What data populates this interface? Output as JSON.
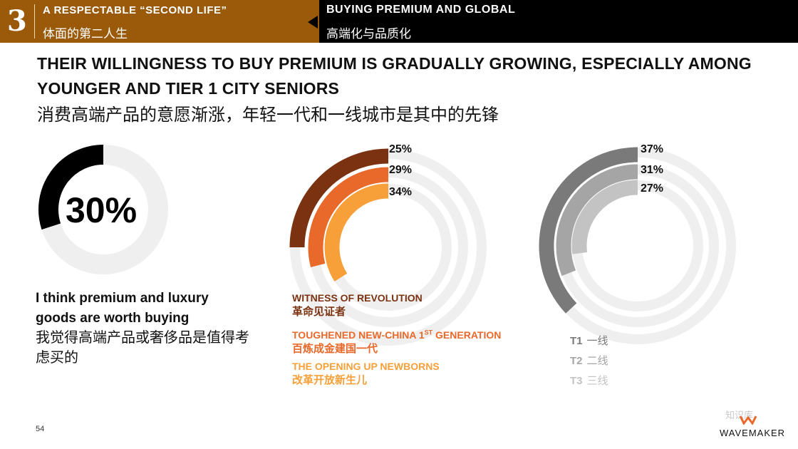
{
  "section": {
    "number": "3",
    "title_en": "A RESPECTABLE “SECOND LIFE”",
    "title_cn": "体面的第二人生",
    "subtitle_en": "BUYING PREMIUM AND GLOBAL",
    "subtitle_cn": "高端化与品质化"
  },
  "headline": {
    "en": "THEIR WILLINGNESS TO BUY PREMIUM IS GRADUALLY GROWING, ESPECIALLY AMONG YOUNGER AND TIER 1 CITY SENIORS",
    "cn": "消费高端产品的意愿渐涨，年轻一代和一线城市是其中的先锋"
  },
  "main_stat": {
    "value_text": "30%",
    "desc_en": "I think premium and luxury goods are worth buying",
    "desc_cn": "我觉得高端产品或奢侈品是值得考虑买的"
  },
  "colors": {
    "section_brown": "#9a5a0a",
    "gen1": "#7b3210",
    "gen2": "#e8692a",
    "gen3": "#f7a03a",
    "tier1": "#7a7a7a",
    "tier2": "#a5a5a5",
    "tier3": "#c3c3c3",
    "track": "#efefef",
    "black": "#000000"
  },
  "chart_data": [
    {
      "type": "pie",
      "subtype": "donut",
      "values": [
        30
      ],
      "labels": [
        "30%"
      ],
      "max": 100
    },
    {
      "type": "pie",
      "subtype": "radial-bar",
      "series": [
        {
          "name": "WITNESS OF REVOLUTION",
          "name_cn": "革命见证者",
          "value": 25,
          "label": "25%"
        },
        {
          "name": "TOUGHENED NEW-CHINA 1ST GENERATION",
          "name_cn": "百炼成金建国一代",
          "value": 29,
          "label": "29%"
        },
        {
          "name": "THE OPENING UP NEWBORNS",
          "name_cn": "改革开放新生儿",
          "value": 34,
          "label": "34%"
        }
      ],
      "max": 100
    },
    {
      "type": "pie",
      "subtype": "radial-bar",
      "series": [
        {
          "name": "T1",
          "name_cn": "一线",
          "value": 37,
          "label": "37%"
        },
        {
          "name": "T2",
          "name_cn": "二线",
          "value": 31,
          "label": "31%"
        },
        {
          "name": "T3",
          "name_cn": "三线",
          "value": 27,
          "label": "27%"
        }
      ],
      "max": 100
    }
  ],
  "legend_gen": [
    {
      "en": "WITNESS OF REVOLUTION",
      "cn": "革命见证者"
    },
    {
      "en_main": "TOUGHENED NEW-CHINA 1",
      "en_sup": "ST",
      "en_tail": " GENERATION",
      "cn": "百炼成金建国一代"
    },
    {
      "en": "THE OPENING UP NEWBORNS",
      "cn": "改革开放新生儿"
    }
  ],
  "legend_tier": [
    {
      "code": "T1",
      "cn": "一线"
    },
    {
      "code": "T2",
      "cn": "二线"
    },
    {
      "code": "T3",
      "cn": "三线"
    }
  ],
  "footer": {
    "page": "54",
    "brand": "WAVEMAKER",
    "watermark": "知识库"
  }
}
